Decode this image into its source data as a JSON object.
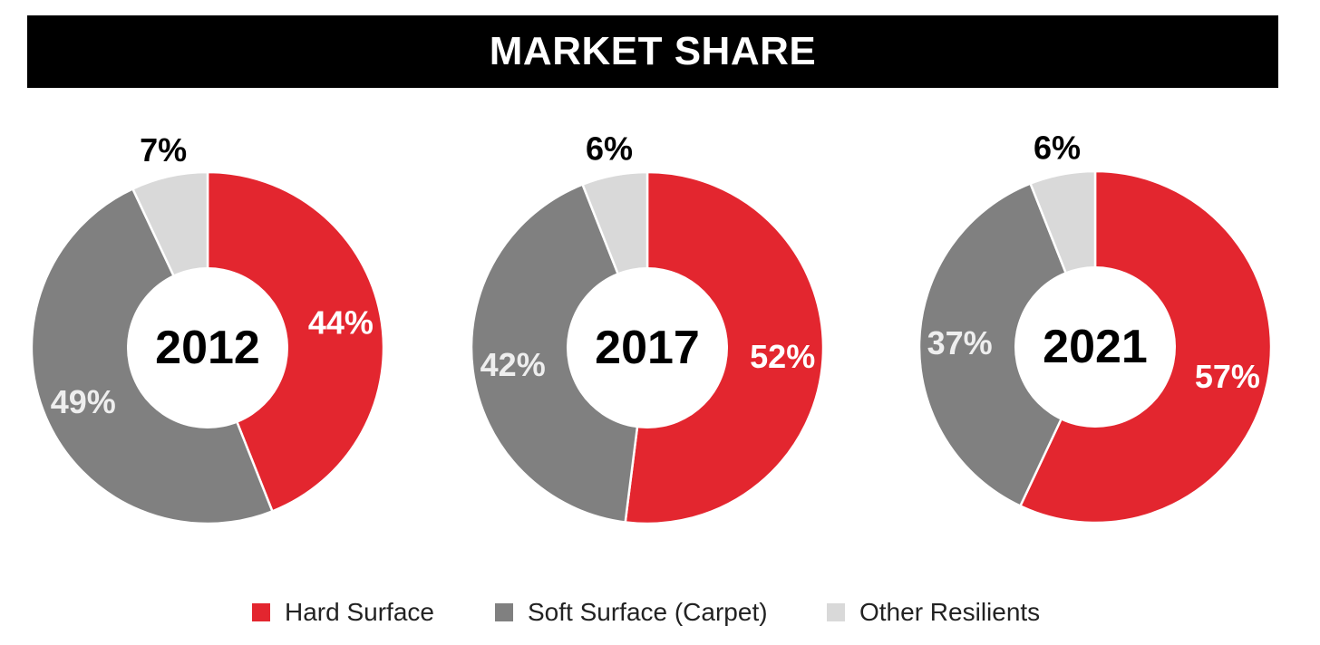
{
  "header": {
    "title": "MARKET SHARE"
  },
  "colors": {
    "hard_surface": "#e3262f",
    "soft_surface": "#808080",
    "other_resilients": "#d9d9d9",
    "title_background": "#000000"
  },
  "legend": [
    {
      "label": "Hard Surface",
      "color": "#e3262f"
    },
    {
      "label": "Soft Surface (Carpet)",
      "color": "#808080"
    },
    {
      "label": "Other Resilients",
      "color": "#d9d9d9"
    }
  ],
  "chart_data": [
    {
      "type": "pie",
      "center_label": "2012",
      "categories": [
        "Hard Surface",
        "Soft Surface (Carpet)",
        "Other Resilients"
      ],
      "values": [
        44,
        49,
        7
      ],
      "labels": [
        "44%",
        "49%",
        "7%"
      ]
    },
    {
      "type": "pie",
      "center_label": "2017",
      "categories": [
        "Hard Surface",
        "Soft Surface (Carpet)",
        "Other Resilients"
      ],
      "values": [
        52,
        42,
        6
      ],
      "labels": [
        "52%",
        "42%",
        "6%"
      ]
    },
    {
      "type": "pie",
      "center_label": "2021",
      "categories": [
        "Hard Surface",
        "Soft Surface (Carpet)",
        "Other Resilients"
      ],
      "values": [
        57,
        37,
        6
      ],
      "labels": [
        "57%",
        "37%",
        "6%"
      ]
    }
  ]
}
